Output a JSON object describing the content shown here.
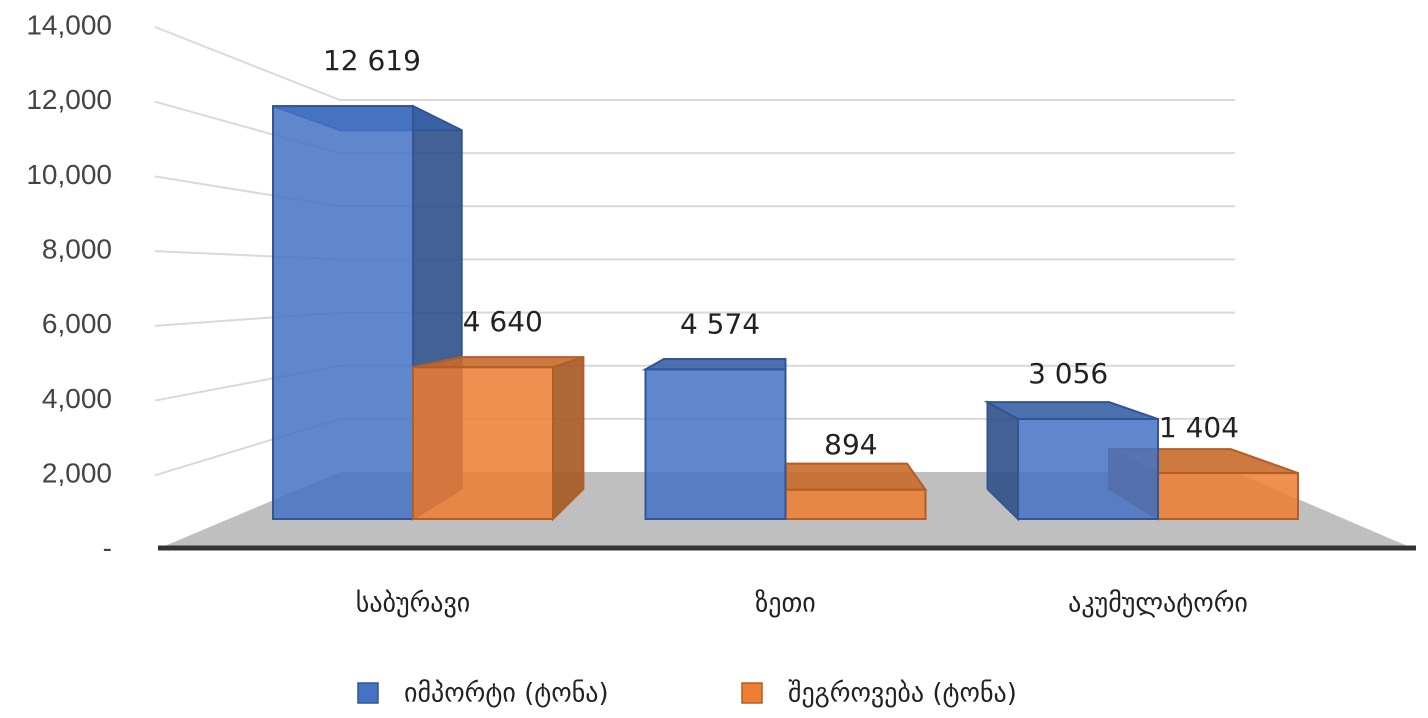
{
  "chart_data": {
    "type": "bar3d",
    "categories": [
      "საბურავი",
      "ზეთი",
      "აკუმულატორი"
    ],
    "series": [
      {
        "name": "იმპორტი (ტონა)",
        "color": "#4472c4",
        "values": [
          12619,
          4574,
          3056
        ],
        "value_labels": [
          "12 619",
          "4 574",
          "3 056"
        ]
      },
      {
        "name": "შეგროვება (ტონა)",
        "color": "#ed7d31",
        "values": [
          4640,
          894,
          1404
        ],
        "value_labels": [
          "4 640",
          "894",
          "1 404"
        ]
      }
    ],
    "ylim": [
      0,
      14000
    ],
    "yticks": [
      {
        "value": 0,
        "label": "-"
      },
      {
        "value": 2000,
        "label": "2,000"
      },
      {
        "value": 4000,
        "label": "4,000"
      },
      {
        "value": 6000,
        "label": "6,000"
      },
      {
        "value": 8000,
        "label": "8,000"
      },
      {
        "value": 10000,
        "label": "10,000"
      },
      {
        "value": 12000,
        "label": "12,000"
      },
      {
        "value": 14000,
        "label": "14,000"
      }
    ],
    "grid": true,
    "legend": "bottom"
  }
}
